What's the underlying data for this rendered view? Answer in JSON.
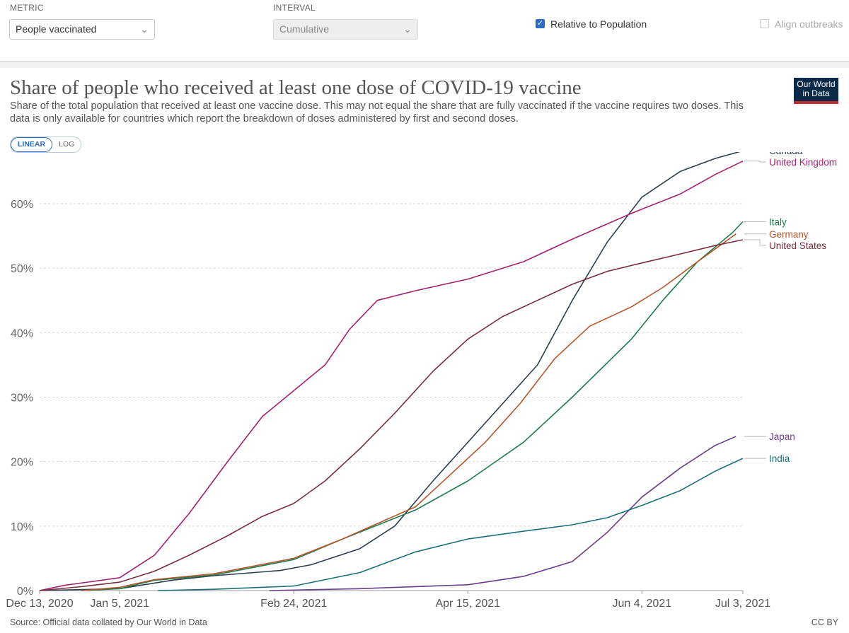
{
  "controls": {
    "metric_label": "METRIC",
    "metric_value": "People vaccinated",
    "interval_label": "INTERVAL",
    "interval_value": "Cumulative",
    "relative_label": "Relative to Population",
    "relative_checked": true,
    "align_label": "Align outbreaks",
    "align_checked": false
  },
  "header": {
    "title": "Share of people who received at least one dose of COVID-19 vaccine",
    "subtitle": "Share of the total population that received at least one vaccine dose. This may not equal the share that are fully vaccinated if the vaccine requires two doses. This data is only available for countries which report the breakdown of doses administered by first and second doses.",
    "logo_line1": "Our World",
    "logo_line2": "in Data"
  },
  "scale_toggle": {
    "linear": "LINEAR",
    "log": "LOG",
    "active": "linear"
  },
  "footer": {
    "source": "Source: Official data collated by Our World in Data",
    "license": "CC BY"
  },
  "chart_data": {
    "type": "line",
    "x_ticks": [
      "Dec 13, 2020",
      "Jan 5, 2021",
      "Feb 24, 2021",
      "Apr 15, 2021",
      "Jun 4, 2021",
      "Jul 3, 2021"
    ],
    "x_range": [
      "2020-12-13",
      "2021-07-03"
    ],
    "y_ticks": [
      "0%",
      "10%",
      "20%",
      "30%",
      "40%",
      "50%",
      "60%"
    ],
    "ylim": [
      0,
      68
    ],
    "grid": "horizontal dashed",
    "series": [
      {
        "name": "Canada",
        "color": "#2d3e50",
        "points": [
          [
            "2020-12-13",
            0
          ],
          [
            "2021-01-05",
            0.3
          ],
          [
            "2021-01-20",
            1.6
          ],
          [
            "2021-02-01",
            2.3
          ],
          [
            "2021-02-20",
            3.1
          ],
          [
            "2021-03-01",
            4.0
          ],
          [
            "2021-03-15",
            6.5
          ],
          [
            "2021-03-25",
            10
          ],
          [
            "2021-04-05",
            17
          ],
          [
            "2021-04-15",
            23
          ],
          [
            "2021-04-25",
            29
          ],
          [
            "2021-05-05",
            35
          ],
          [
            "2021-05-15",
            45
          ],
          [
            "2021-05-25",
            54
          ],
          [
            "2021-06-04",
            61
          ],
          [
            "2021-06-15",
            65
          ],
          [
            "2021-06-25",
            67
          ],
          [
            "2021-07-03",
            68.2
          ]
        ]
      },
      {
        "name": "United Kingdom",
        "color": "#a2236c",
        "points": [
          [
            "2020-12-13",
            0
          ],
          [
            "2020-12-20",
            0.8
          ],
          [
            "2021-01-05",
            2.0
          ],
          [
            "2021-01-15",
            5.5
          ],
          [
            "2021-01-25",
            12
          ],
          [
            "2021-02-05",
            20
          ],
          [
            "2021-02-15",
            27
          ],
          [
            "2021-02-24",
            31
          ],
          [
            "2021-03-05",
            35
          ],
          [
            "2021-03-12",
            40.5
          ],
          [
            "2021-03-20",
            45
          ],
          [
            "2021-03-31",
            46.5
          ],
          [
            "2021-04-15",
            48.3
          ],
          [
            "2021-05-01",
            51
          ],
          [
            "2021-05-15",
            54.5
          ],
          [
            "2021-06-01",
            58.5
          ],
          [
            "2021-06-15",
            61.5
          ],
          [
            "2021-06-25",
            64.5
          ],
          [
            "2021-07-03",
            66.6
          ]
        ]
      },
      {
        "name": "Italy",
        "color": "#1f7a4c",
        "points": [
          [
            "2020-12-25",
            0
          ],
          [
            "2021-01-05",
            0.3
          ],
          [
            "2021-01-15",
            1.6
          ],
          [
            "2021-02-01",
            2.4
          ],
          [
            "2021-02-24",
            4.8
          ],
          [
            "2021-03-10",
            8
          ],
          [
            "2021-03-31",
            12.5
          ],
          [
            "2021-04-15",
            17
          ],
          [
            "2021-05-01",
            23
          ],
          [
            "2021-05-15",
            30
          ],
          [
            "2021-06-01",
            39
          ],
          [
            "2021-06-10",
            45
          ],
          [
            "2021-06-20",
            51
          ],
          [
            "2021-06-30",
            55.5
          ],
          [
            "2021-07-03",
            57.2
          ]
        ]
      },
      {
        "name": "Germany",
        "color": "#b5562b",
        "points": [
          [
            "2020-12-25",
            0
          ],
          [
            "2021-01-05",
            0.5
          ],
          [
            "2021-01-15",
            1.7
          ],
          [
            "2021-02-01",
            2.6
          ],
          [
            "2021-02-24",
            5
          ],
          [
            "2021-03-10",
            8
          ],
          [
            "2021-03-31",
            13
          ],
          [
            "2021-04-10",
            18
          ],
          [
            "2021-04-20",
            23
          ],
          [
            "2021-04-30",
            29
          ],
          [
            "2021-05-10",
            36
          ],
          [
            "2021-05-20",
            41
          ],
          [
            "2021-06-01",
            44
          ],
          [
            "2021-06-10",
            47
          ],
          [
            "2021-06-20",
            51
          ],
          [
            "2021-07-01",
            55.3
          ]
        ]
      },
      {
        "name": "United States",
        "color": "#7a2e3b",
        "points": [
          [
            "2020-12-13",
            0
          ],
          [
            "2020-12-25",
            0.6
          ],
          [
            "2021-01-05",
            1.3
          ],
          [
            "2021-01-15",
            3.0
          ],
          [
            "2021-01-25",
            5.5
          ],
          [
            "2021-02-05",
            8.5
          ],
          [
            "2021-02-15",
            11.5
          ],
          [
            "2021-02-24",
            13.5
          ],
          [
            "2021-03-05",
            17
          ],
          [
            "2021-03-15",
            22
          ],
          [
            "2021-03-25",
            27.5
          ],
          [
            "2021-04-05",
            34
          ],
          [
            "2021-04-15",
            39
          ],
          [
            "2021-04-25",
            42.5
          ],
          [
            "2021-05-05",
            45
          ],
          [
            "2021-05-15",
            47.5
          ],
          [
            "2021-05-25",
            49.5
          ],
          [
            "2021-06-04",
            50.8
          ],
          [
            "2021-06-15",
            52.2
          ],
          [
            "2021-06-25",
            53.5
          ],
          [
            "2021-07-03",
            54.4
          ]
        ]
      },
      {
        "name": "Japan",
        "color": "#6b3d8a",
        "points": [
          [
            "2021-02-17",
            0
          ],
          [
            "2021-03-15",
            0.3
          ],
          [
            "2021-04-15",
            0.9
          ],
          [
            "2021-05-01",
            2.2
          ],
          [
            "2021-05-15",
            4.5
          ],
          [
            "2021-05-25",
            9
          ],
          [
            "2021-06-04",
            14.5
          ],
          [
            "2021-06-15",
            19
          ],
          [
            "2021-06-25",
            22.5
          ],
          [
            "2021-07-01",
            23.9
          ]
        ]
      },
      {
        "name": "India",
        "color": "#1c6f78",
        "points": [
          [
            "2021-01-16",
            0
          ],
          [
            "2021-02-01",
            0.2
          ],
          [
            "2021-02-24",
            0.7
          ],
          [
            "2021-03-15",
            2.8
          ],
          [
            "2021-03-31",
            6
          ],
          [
            "2021-04-15",
            8
          ],
          [
            "2021-05-01",
            9.2
          ],
          [
            "2021-05-15",
            10.2
          ],
          [
            "2021-05-25",
            11.3
          ],
          [
            "2021-06-04",
            13.2
          ],
          [
            "2021-06-15",
            15.5
          ],
          [
            "2021-06-25",
            18.5
          ],
          [
            "2021-07-03",
            20.5
          ]
        ]
      }
    ]
  }
}
